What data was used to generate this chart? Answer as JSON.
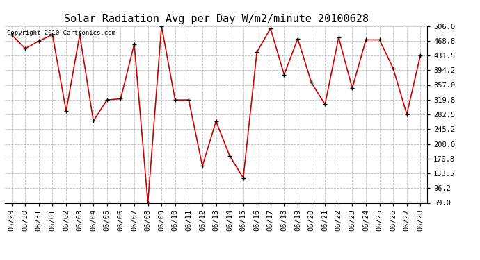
{
  "title": "Solar Radiation Avg per Day W/m2/minute 20100628",
  "copyright": "Copyright 2010 Cartronics.com",
  "labels": [
    "05/29",
    "05/30",
    "05/31",
    "06/01",
    "06/02",
    "06/03",
    "06/04",
    "06/05",
    "06/06",
    "06/07",
    "06/08",
    "06/09",
    "06/10",
    "06/11",
    "06/12",
    "06/13",
    "06/14",
    "06/15",
    "06/16",
    "06/17",
    "06/18",
    "06/19",
    "06/20",
    "06/21",
    "06/22",
    "06/23",
    "06/24",
    "06/25",
    "06/26",
    "06/27",
    "06/28"
  ],
  "values": [
    484.0,
    449.0,
    468.0,
    484.0,
    291.0,
    484.0,
    266.0,
    319.0,
    322.0,
    460.0,
    59.0,
    506.0,
    319.0,
    319.0,
    152.0,
    265.0,
    178.0,
    122.0,
    440.0,
    500.0,
    383.0,
    474.0,
    363.0,
    308.0,
    477.0,
    349.0,
    471.0,
    471.0,
    399.0,
    283.0,
    432.0
  ],
  "ylim": [
    59.0,
    506.0
  ],
  "yticks": [
    59.0,
    96.2,
    133.5,
    170.8,
    208.0,
    245.2,
    282.5,
    319.8,
    357.0,
    394.2,
    431.5,
    468.8,
    506.0
  ],
  "line_color": "#cc0000",
  "marker_color": "#000000",
  "bg_color": "#ffffff",
  "grid_color": "#bbbbbb",
  "title_fontsize": 11,
  "tick_fontsize": 7.5,
  "copyright_fontsize": 6.5
}
